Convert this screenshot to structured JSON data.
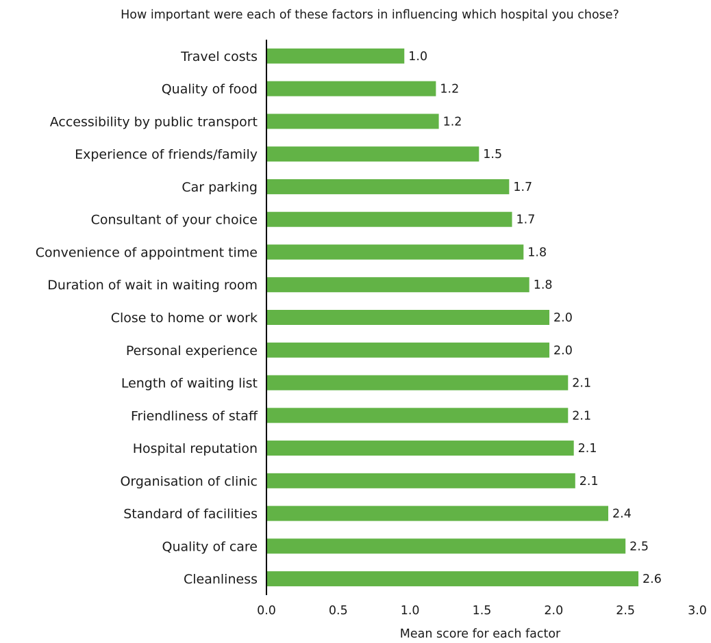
{
  "chart_data": {
    "type": "bar",
    "orientation": "horizontal",
    "title": "How important were each of these factors in influencing which hospital you chose?",
    "xlabel": "Mean score for each factor",
    "ylabel": "",
    "xlim": [
      0,
      3.0
    ],
    "ticks": [
      "0.0",
      "0.5",
      "1.0",
      "1.5",
      "2.0",
      "2.5",
      "3.0"
    ],
    "grid": false,
    "bar_color": "#62b346",
    "categories": [
      "Travel costs",
      "Quality of food",
      "Accessibility by public transport",
      "Experience of friends/family",
      "Car parking",
      "Consultant of your choice",
      "Convenience of appointment time",
      "Duration of wait in waiting room",
      "Close to home or work",
      "Personal experience",
      "Length of waiting list",
      "Friendliness of staff",
      "Hospital reputation",
      "Organisation of clinic",
      "Standard of facilities",
      "Quality of care",
      "Cleanliness"
    ],
    "values": [
      0.96,
      1.18,
      1.2,
      1.48,
      1.69,
      1.71,
      1.79,
      1.83,
      1.97,
      1.97,
      2.1,
      2.1,
      2.14,
      2.15,
      2.38,
      2.5,
      2.59
    ],
    "labels": [
      "1.0",
      "1.2",
      "1.2",
      "1.5",
      "1.7",
      "1.7",
      "1.8",
      "1.8",
      "2.0",
      "2.0",
      "2.1",
      "2.1",
      "2.1",
      "2.1",
      "2.4",
      "2.5",
      "2.6"
    ]
  }
}
